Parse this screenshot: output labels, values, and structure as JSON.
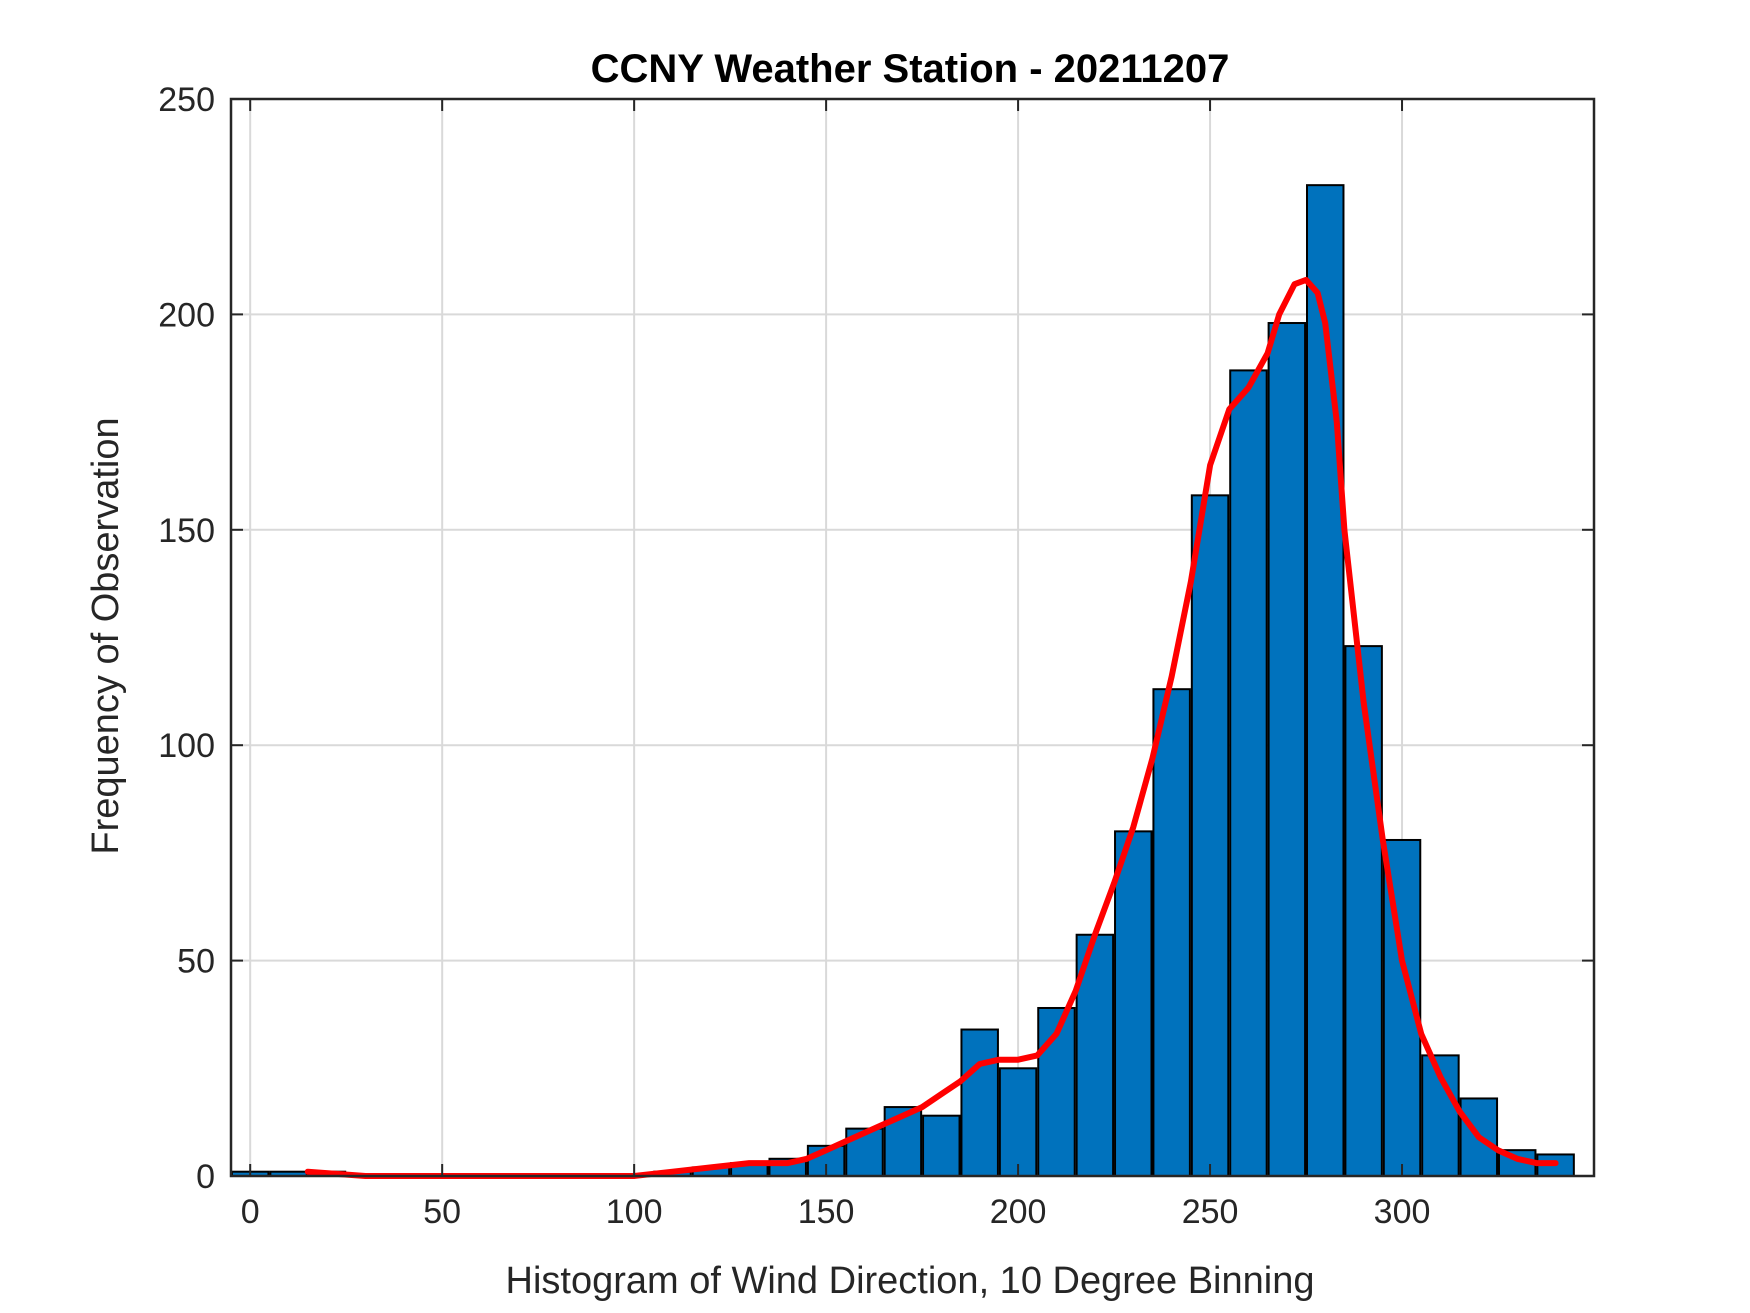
{
  "chart_data": {
    "type": "bar",
    "title": "CCNY Weather Station - 20211207",
    "xlabel": "Histogram of Wind Direction, 10 Degree Binning",
    "ylabel": "Frequency of Observation",
    "xlim": [
      -5,
      350
    ],
    "ylim": [
      0,
      250
    ],
    "xticks": [
      0,
      50,
      100,
      150,
      200,
      250,
      300
    ],
    "yticks": [
      0,
      50,
      100,
      150,
      200,
      250
    ],
    "grid": true,
    "bin_width": 9.5,
    "bins": [
      {
        "x": 0,
        "value": 1
      },
      {
        "x": 10,
        "value": 1
      },
      {
        "x": 20,
        "value": 1
      },
      {
        "x": 30,
        "value": 0
      },
      {
        "x": 40,
        "value": 0
      },
      {
        "x": 50,
        "value": 0
      },
      {
        "x": 60,
        "value": 0
      },
      {
        "x": 70,
        "value": 0
      },
      {
        "x": 80,
        "value": 0
      },
      {
        "x": 90,
        "value": 0
      },
      {
        "x": 100,
        "value": 0
      },
      {
        "x": 110,
        "value": 1
      },
      {
        "x": 120,
        "value": 2
      },
      {
        "x": 130,
        "value": 3
      },
      {
        "x": 140,
        "value": 4
      },
      {
        "x": 150,
        "value": 7
      },
      {
        "x": 160,
        "value": 11
      },
      {
        "x": 170,
        "value": 16
      },
      {
        "x": 180,
        "value": 14
      },
      {
        "x": 190,
        "value": 34
      },
      {
        "x": 200,
        "value": 25
      },
      {
        "x": 210,
        "value": 39
      },
      {
        "x": 220,
        "value": 56
      },
      {
        "x": 230,
        "value": 80
      },
      {
        "x": 240,
        "value": 113
      },
      {
        "x": 250,
        "value": 158
      },
      {
        "x": 260,
        "value": 187
      },
      {
        "x": 270,
        "value": 198
      },
      {
        "x": 280,
        "value": 230
      },
      {
        "x": 290,
        "value": 123
      },
      {
        "x": 300,
        "value": 78
      },
      {
        "x": 310,
        "value": 28
      },
      {
        "x": 320,
        "value": 18
      },
      {
        "x": 330,
        "value": 6
      },
      {
        "x": 340,
        "value": 5
      }
    ],
    "fit_curve": {
      "x": [
        15,
        30,
        50,
        80,
        100,
        110,
        120,
        130,
        140,
        145,
        150,
        155,
        160,
        165,
        170,
        175,
        180,
        185,
        190,
        195,
        200,
        205,
        210,
        215,
        220,
        225,
        230,
        235,
        240,
        245,
        250,
        255,
        260,
        265,
        268,
        272,
        275,
        278,
        280,
        283,
        285,
        290,
        295,
        300,
        305,
        310,
        315,
        320,
        325,
        330,
        335,
        340
      ],
      "y": [
        1,
        0,
        0,
        0,
        0,
        1,
        2,
        3,
        3,
        4,
        6,
        8,
        10,
        12,
        14,
        16,
        19,
        22,
        26,
        27,
        27,
        28,
        33,
        43,
        56,
        68,
        81,
        97,
        116,
        138,
        165,
        178,
        183,
        191,
        200,
        207,
        208,
        205,
        198,
        175,
        150,
        110,
        78,
        50,
        33,
        23,
        15,
        9,
        6,
        4,
        3,
        3
      ]
    },
    "colors": {
      "bar_fill": "#0072BD",
      "bar_edge": "#000000",
      "curve": "#ff0000",
      "grid": "#d9d9d9",
      "axes": "#262626"
    }
  }
}
